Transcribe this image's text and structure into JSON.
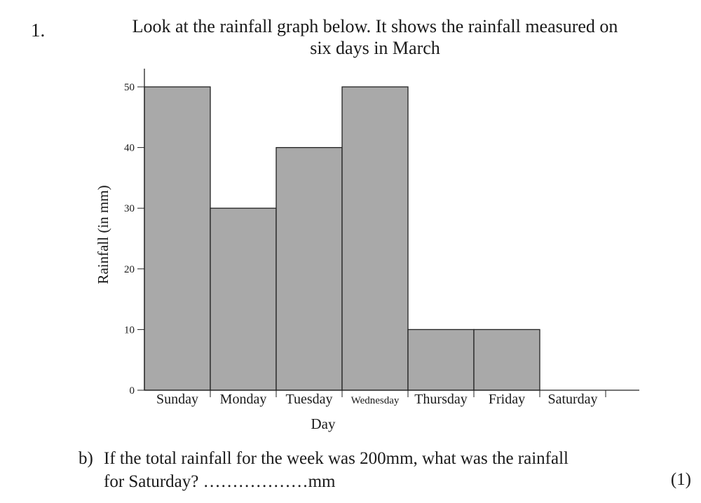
{
  "question": {
    "number": "1.",
    "intro_line1": "Look at the rainfall graph below. It shows the rainfall measured on",
    "intro_line2": "six days in March"
  },
  "chart_data": {
    "type": "bar",
    "categories": [
      "Sunday",
      "Monday",
      "Tuesday",
      "Wednesday",
      "Thursday",
      "Friday",
      "Saturday"
    ],
    "values": [
      50,
      30,
      40,
      50,
      10,
      10,
      null
    ],
    "xlabel": "Day",
    "ylabel": "Rainfall (in mm)",
    "ylim": [
      0,
      50
    ],
    "yticks": [
      0,
      10,
      20,
      30,
      40,
      50
    ],
    "grid": false,
    "bar_color": "#a9a9a9"
  },
  "part_b": {
    "letter": "b)",
    "line1": "If the total rainfall for the week was 200mm, what was the rainfall",
    "line2": "for Saturday? ………………mm",
    "marks": "(1)"
  }
}
